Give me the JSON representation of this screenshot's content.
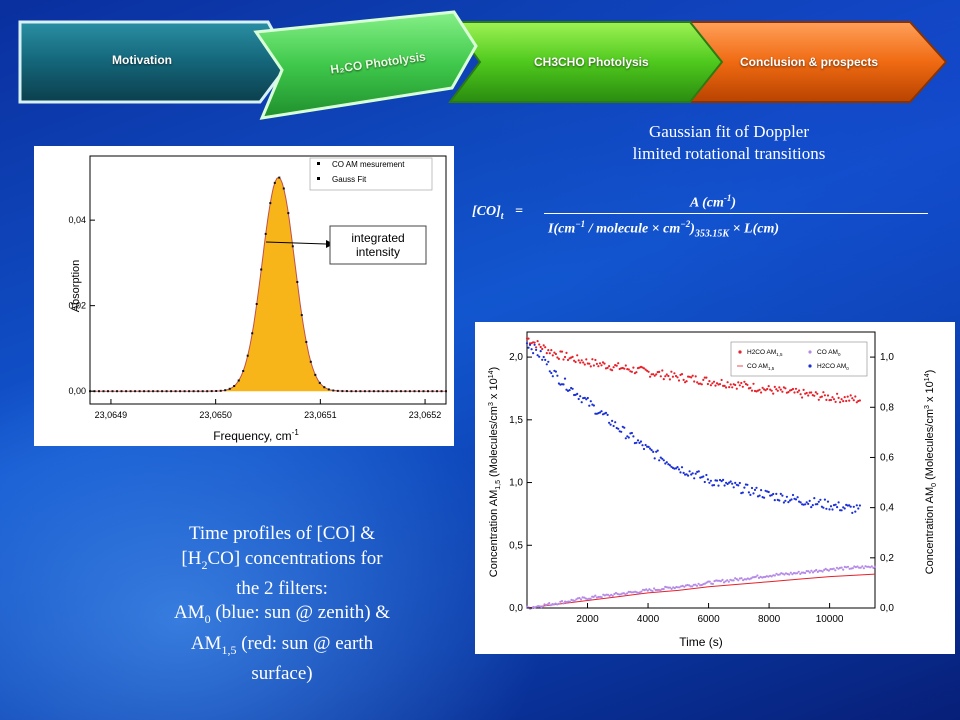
{
  "nav": {
    "tabs": [
      {
        "label": "Motivation"
      },
      {
        "label": "H₂CO Photolysis"
      },
      {
        "label": "CH3CHO Photolysis"
      },
      {
        "label": "Conclusion & prospects"
      }
    ]
  },
  "gauss_caption": {
    "line1": "Gaussian fit of Doppler",
    "line2": "limited rotational transitions"
  },
  "formula": {
    "lhs": "[CO]",
    "lhs_sub": "t",
    "equals": "=",
    "numerator": "A (cm",
    "numerator_sup": "-1",
    "numerator_close": ")",
    "den_part1": "I(cm",
    "den_sup1": "−1",
    "den_part2": " / molecule × cm",
    "den_sup2": "−2",
    "den_part3": ")",
    "den_sub": "353.15K",
    "den_part4": " × L(cm)"
  },
  "time_caption": {
    "l1": "Time profiles of [CO] &",
    "l2_a": "[H",
    "l2_sub": "2",
    "l2_b": "CO] concentrations for",
    "l3": "the 2 filters:",
    "l4_a": "AM",
    "l4_sub": "0",
    "l4_b": " (blue: sun @ zenith) &",
    "l5_a": "AM",
    "l5_sub": "1,5",
    "l5_b": " (red: sun @ earth",
    "l6": "surface)"
  },
  "chart_data": [
    {
      "type": "area",
      "xlabel": "Frequency, cm",
      "xlabel_sup": "-1",
      "ylabel": "Absorption",
      "xlim": [
        23.06488,
        23.06522
      ],
      "ylim": [
        -0.003,
        0.055
      ],
      "xticks": [
        23.0649,
        23.065,
        23.0651,
        23.0652
      ],
      "xtick_labels": [
        "23,0649",
        "23,0650",
        "23,0651",
        "23,0652"
      ],
      "yticks": [
        0.0,
        0.02,
        0.04
      ],
      "ytick_labels": [
        "0,00",
        "0,02",
        "0,04"
      ],
      "legend": {
        "position": "top-right",
        "entries": [
          "CO AM mesurement",
          "Gauss Fit"
        ]
      },
      "annotation": {
        "line1": "integrated",
        "line2": "intensity"
      },
      "series": [
        {
          "name": "Gauss Fit",
          "model": "gaussian",
          "amplitude": 0.05,
          "center": 23.06506,
          "sigma": 1.55e-05,
          "baseline": 0.0
        },
        {
          "name": "CO AM mesurement",
          "x_start": 23.06488,
          "x_end": 23.06522,
          "n_points": 80
        }
      ]
    },
    {
      "type": "scatter",
      "xlabel": "Time (s)",
      "ylabel_left": "Concentration AM",
      "ylabel_left_sub": "1,5",
      "ylabel_left_tail": " (Molecules/cm",
      "ylabel_left_sup1": "3",
      "ylabel_left_end": " x 10",
      "ylabel_left_sup2": "14",
      "ylabel_left_close": ")",
      "ylabel_right": "Concentration AM",
      "ylabel_right_sub": "0",
      "ylabel_right_tail": " (Molecules/cm",
      "ylabel_right_sup1": "3",
      "ylabel_right_end": " x 10",
      "ylabel_right_sup2": "14",
      "ylabel_right_close": ")",
      "xlim": [
        0,
        11500
      ],
      "ylim_left": [
        0,
        2.2
      ],
      "ylim_right": [
        0,
        1.1
      ],
      "xticks": [
        2000,
        4000,
        6000,
        8000,
        10000
      ],
      "xtick_labels": [
        "2000",
        "4000",
        "6000",
        "8000",
        "10000"
      ],
      "yticks_left": [
        0.0,
        0.5,
        1.0,
        1.5,
        2.0
      ],
      "ytick_labels_left": [
        "0,0",
        "0,5",
        "1,0",
        "1,5",
        "2,0"
      ],
      "yticks_right": [
        0.0,
        0.2,
        0.4,
        0.6,
        0.8,
        1.0
      ],
      "ytick_labels_right": [
        "0,0",
        "0,2",
        "0,4",
        "0,6",
        "0,8",
        "1,0"
      ],
      "legend": {
        "position": "top-right"
      },
      "series": [
        {
          "name": "H₂CO AM₁,₅",
          "legend_label": "H2CO AM",
          "legend_sub": "1,5",
          "color": "#e8202a",
          "axis": "left",
          "x": [
            0,
            500,
            1000,
            2000,
            3000,
            4000,
            5000,
            6000,
            7000,
            8000,
            9000,
            10000,
            11000
          ],
          "y": [
            2.15,
            2.08,
            2.02,
            1.96,
            1.92,
            1.88,
            1.84,
            1.81,
            1.78,
            1.74,
            1.71,
            1.68,
            1.66
          ]
        },
        {
          "name": "CO AM₁,₅",
          "legend_label": "CO AM",
          "legend_sub": "1,5",
          "color": "#e8202a",
          "axis": "left",
          "style": "line",
          "x": [
            0,
            1000,
            2000,
            3000,
            4000,
            5000,
            6000,
            7000,
            8000,
            9000,
            10000,
            11500
          ],
          "y": [
            0.0,
            0.03,
            0.06,
            0.09,
            0.12,
            0.14,
            0.17,
            0.19,
            0.21,
            0.23,
            0.25,
            0.27
          ]
        },
        {
          "name": "CO AM₀",
          "legend_label": "CO AM",
          "legend_sub": "0",
          "color": "#b58be6",
          "axis": "right",
          "x": [
            0,
            1000,
            2000,
            3000,
            4000,
            5000,
            6000,
            7000,
            8000,
            9000,
            10000,
            11500
          ],
          "y": [
            0.0,
            0.02,
            0.04,
            0.055,
            0.07,
            0.085,
            0.1,
            0.115,
            0.13,
            0.14,
            0.155,
            0.165
          ]
        },
        {
          "name": "H₂CO AM₀",
          "legend_label": "H2CO AM",
          "legend_sub": "0",
          "color": "#1a2fd6",
          "axis": "right",
          "x": [
            0,
            500,
            1000,
            2000,
            3000,
            4000,
            5000,
            6000,
            7000,
            8000,
            9000,
            10000,
            11000
          ],
          "y": [
            1.06,
            1.0,
            0.92,
            0.82,
            0.72,
            0.63,
            0.56,
            0.51,
            0.48,
            0.45,
            0.43,
            0.41,
            0.39
          ]
        }
      ]
    }
  ]
}
